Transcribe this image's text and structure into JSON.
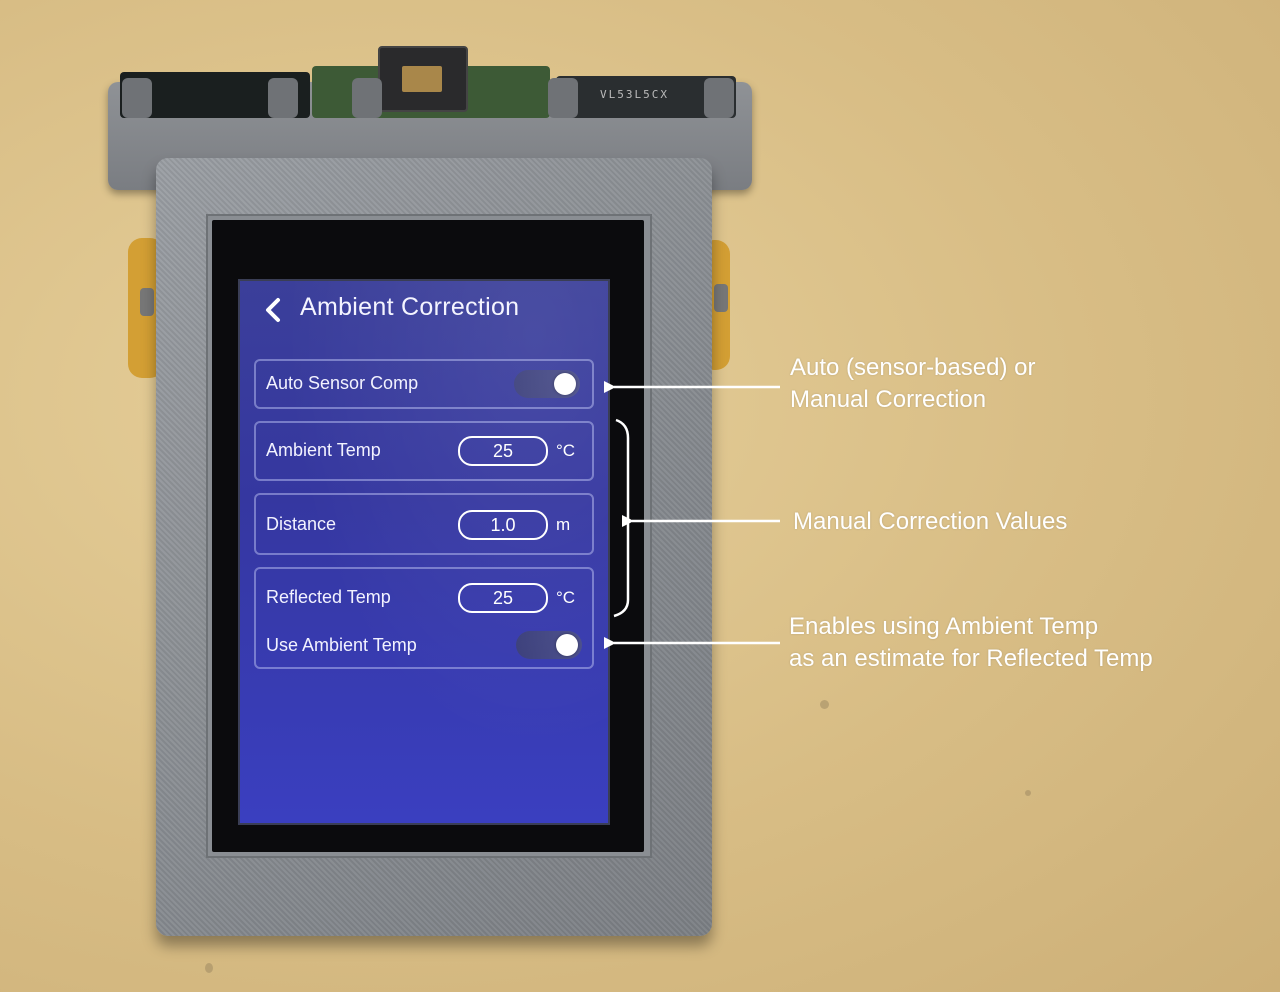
{
  "screen": {
    "title": "Ambient Correction",
    "auto_sensor": {
      "label": "Auto Sensor Comp",
      "enabled": true
    },
    "ambient_temp": {
      "label": "Ambient Temp",
      "value": "25",
      "unit": "°C"
    },
    "distance": {
      "label": "Distance",
      "value": "1.0",
      "unit": "m"
    },
    "reflected_temp": {
      "label": "Reflected Temp",
      "value": "25",
      "unit": "°C"
    },
    "use_ambient": {
      "label": "Use Ambient Temp",
      "enabled": true
    }
  },
  "hardware": {
    "pcb_marking": "VL53L5CX"
  },
  "annotations": {
    "auto": [
      "Auto (sensor-based) or",
      "Manual Correction"
    ],
    "manual": "Manual Correction Values",
    "reflected": [
      "Enables using Ambient Temp",
      "as an estimate for Reflected Temp"
    ]
  },
  "icons": {
    "back": "chevron-left-icon",
    "arrow": "arrow-left-icon"
  },
  "colors": {
    "screen_bg": "#3537a0",
    "annotation": "#ffffff",
    "case": "#8f9297"
  }
}
